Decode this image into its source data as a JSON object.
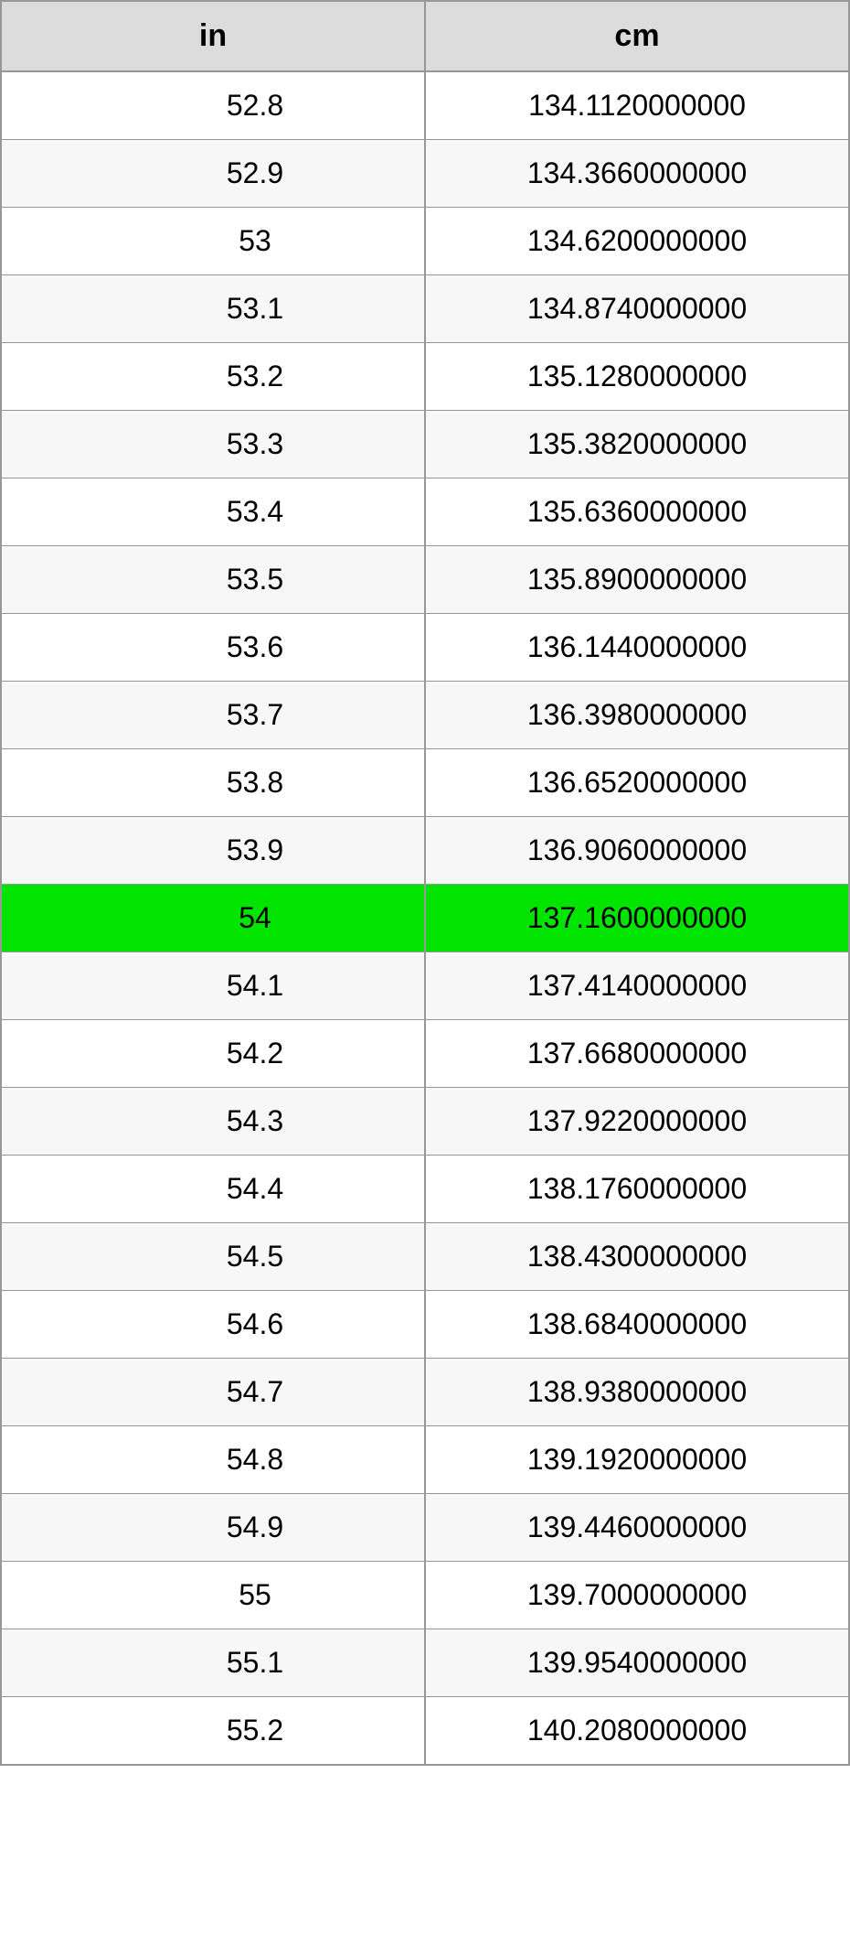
{
  "table": {
    "columns": [
      "in",
      "cm"
    ],
    "header_bg": "#dcdcdc",
    "border_color": "#979797",
    "row_even_bg": "#ffffff",
    "row_odd_bg": "#f7f7f7",
    "highlight_bg": "#00e400",
    "highlight_index": 12,
    "font_family": "Arial",
    "header_fontsize": 34,
    "cell_fontsize": 32,
    "rows": [
      {
        "in": "52.8",
        "cm": "134.1120000000"
      },
      {
        "in": "52.9",
        "cm": "134.3660000000"
      },
      {
        "in": "53",
        "cm": "134.6200000000"
      },
      {
        "in": "53.1",
        "cm": "134.8740000000"
      },
      {
        "in": "53.2",
        "cm": "135.1280000000"
      },
      {
        "in": "53.3",
        "cm": "135.3820000000"
      },
      {
        "in": "53.4",
        "cm": "135.6360000000"
      },
      {
        "in": "53.5",
        "cm": "135.8900000000"
      },
      {
        "in": "53.6",
        "cm": "136.1440000000"
      },
      {
        "in": "53.7",
        "cm": "136.3980000000"
      },
      {
        "in": "53.8",
        "cm": "136.6520000000"
      },
      {
        "in": "53.9",
        "cm": "136.9060000000"
      },
      {
        "in": "54",
        "cm": "137.1600000000"
      },
      {
        "in": "54.1",
        "cm": "137.4140000000"
      },
      {
        "in": "54.2",
        "cm": "137.6680000000"
      },
      {
        "in": "54.3",
        "cm": "137.9220000000"
      },
      {
        "in": "54.4",
        "cm": "138.1760000000"
      },
      {
        "in": "54.5",
        "cm": "138.4300000000"
      },
      {
        "in": "54.6",
        "cm": "138.6840000000"
      },
      {
        "in": "54.7",
        "cm": "138.9380000000"
      },
      {
        "in": "54.8",
        "cm": "139.1920000000"
      },
      {
        "in": "54.9",
        "cm": "139.4460000000"
      },
      {
        "in": "55",
        "cm": "139.7000000000"
      },
      {
        "in": "55.1",
        "cm": "139.9540000000"
      },
      {
        "in": "55.2",
        "cm": "140.2080000000"
      }
    ]
  }
}
